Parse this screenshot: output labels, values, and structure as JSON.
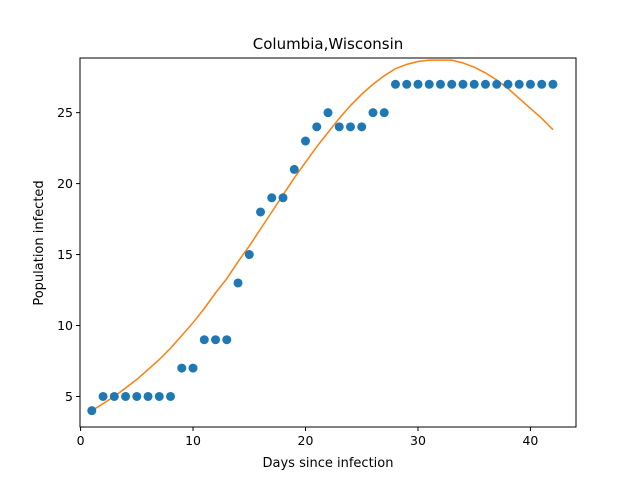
{
  "chart_data": {
    "type": "scatter",
    "title": "Columbia,Wisconsin",
    "xlabel": "Days since infection",
    "ylabel": "Population infected",
    "xlim": [
      -0.05,
      44.05
    ],
    "ylim": [
      2.85,
      28.85
    ],
    "xticks": [
      0,
      10,
      20,
      30,
      40
    ],
    "yticks": [
      5,
      10,
      15,
      20,
      25
    ],
    "grid": false,
    "colors": {
      "points": "#1f77b4",
      "fit": "#ff7f0e"
    },
    "series": [
      {
        "type": "scatter",
        "x": [
          1,
          2,
          3,
          4,
          5,
          6,
          7,
          8,
          9,
          10,
          11,
          12,
          13,
          14,
          15,
          16,
          17,
          18,
          19,
          20,
          21,
          22,
          23,
          24,
          25,
          26,
          27,
          28,
          29,
          30,
          31,
          32,
          33,
          34,
          35,
          36,
          37,
          38,
          39,
          40,
          41,
          42
        ],
        "y": [
          4,
          5,
          5,
          5,
          5,
          5,
          5,
          5,
          7,
          7,
          9,
          9,
          9,
          13,
          15,
          18,
          19,
          19,
          21,
          23,
          24,
          25,
          24,
          24,
          24,
          25,
          25,
          27,
          27,
          27,
          27,
          27,
          27,
          27,
          27,
          27,
          27,
          27,
          27,
          27,
          27,
          27
        ]
      },
      {
        "type": "line",
        "x": [
          1,
          2,
          3,
          4,
          5,
          6,
          7,
          8,
          9,
          10,
          11,
          12,
          13,
          14,
          15,
          16,
          17,
          18,
          19,
          20,
          21,
          22,
          23,
          24,
          25,
          26,
          27,
          28,
          29,
          30,
          31,
          32,
          33,
          34,
          35,
          36,
          37,
          38,
          39,
          40,
          41,
          42
        ],
        "y": [
          4.0,
          4.5,
          5.0,
          5.6,
          6.2,
          6.9,
          7.6,
          8.4,
          9.3,
          10.2,
          11.2,
          12.3,
          13.3,
          14.5,
          15.6,
          16.8,
          18.0,
          19.2,
          20.4,
          21.5,
          22.6,
          23.6,
          24.6,
          25.5,
          26.3,
          27.0,
          27.6,
          28.1,
          28.4,
          28.6,
          28.7,
          28.7,
          28.7,
          28.5,
          28.2,
          27.8,
          27.3,
          26.7,
          26.0,
          25.3,
          24.6,
          23.8
        ]
      }
    ]
  }
}
